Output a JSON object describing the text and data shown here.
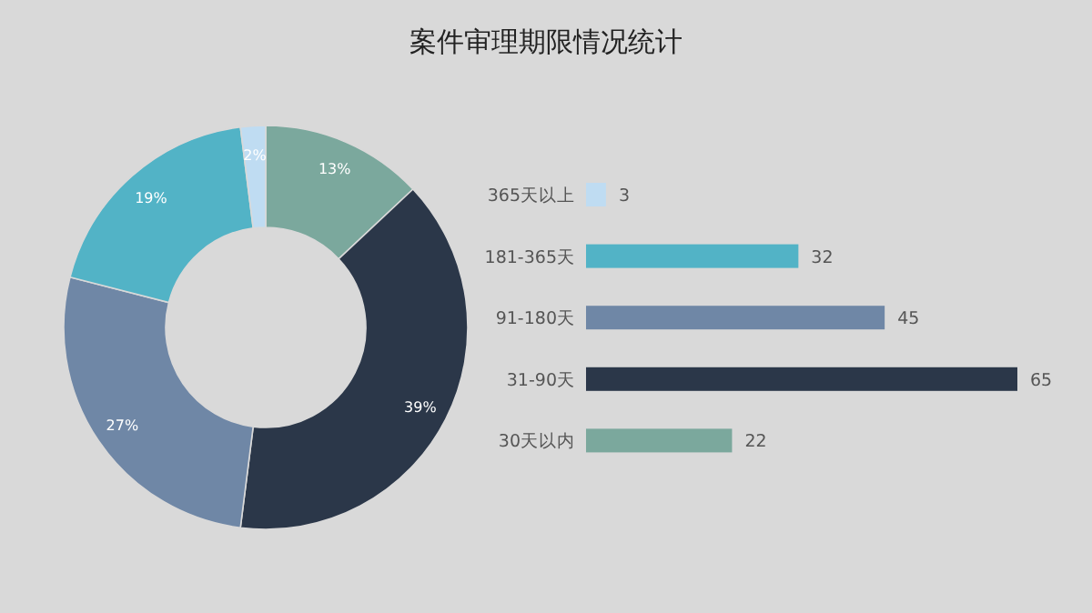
{
  "chart_data": [
    {
      "type": "donut",
      "title": "案件审理期限情况统计",
      "categories": [
        null,
        null,
        null,
        null,
        null
      ],
      "values": [
        13,
        39,
        27,
        19,
        2
      ],
      "value_labels": [
        "13%",
        "39%",
        "27%",
        "19%",
        "2%"
      ],
      "colors": [
        "#7ba89d",
        "#2b3749",
        "#6f87a6",
        "#52b3c6",
        "#bfdcf2"
      ]
    },
    {
      "type": "bar",
      "orientation": "horizontal",
      "categories": [
        "365天以上",
        "181-365天",
        "91-180天",
        "31-90天",
        "30天以内"
      ],
      "values": [
        3,
        32,
        45,
        65,
        22
      ],
      "colors": [
        "#bfdcf2",
        "#52b3c6",
        "#6f87a6",
        "#2b3749",
        "#7ba89d"
      ],
      "data_labels": true
    }
  ]
}
